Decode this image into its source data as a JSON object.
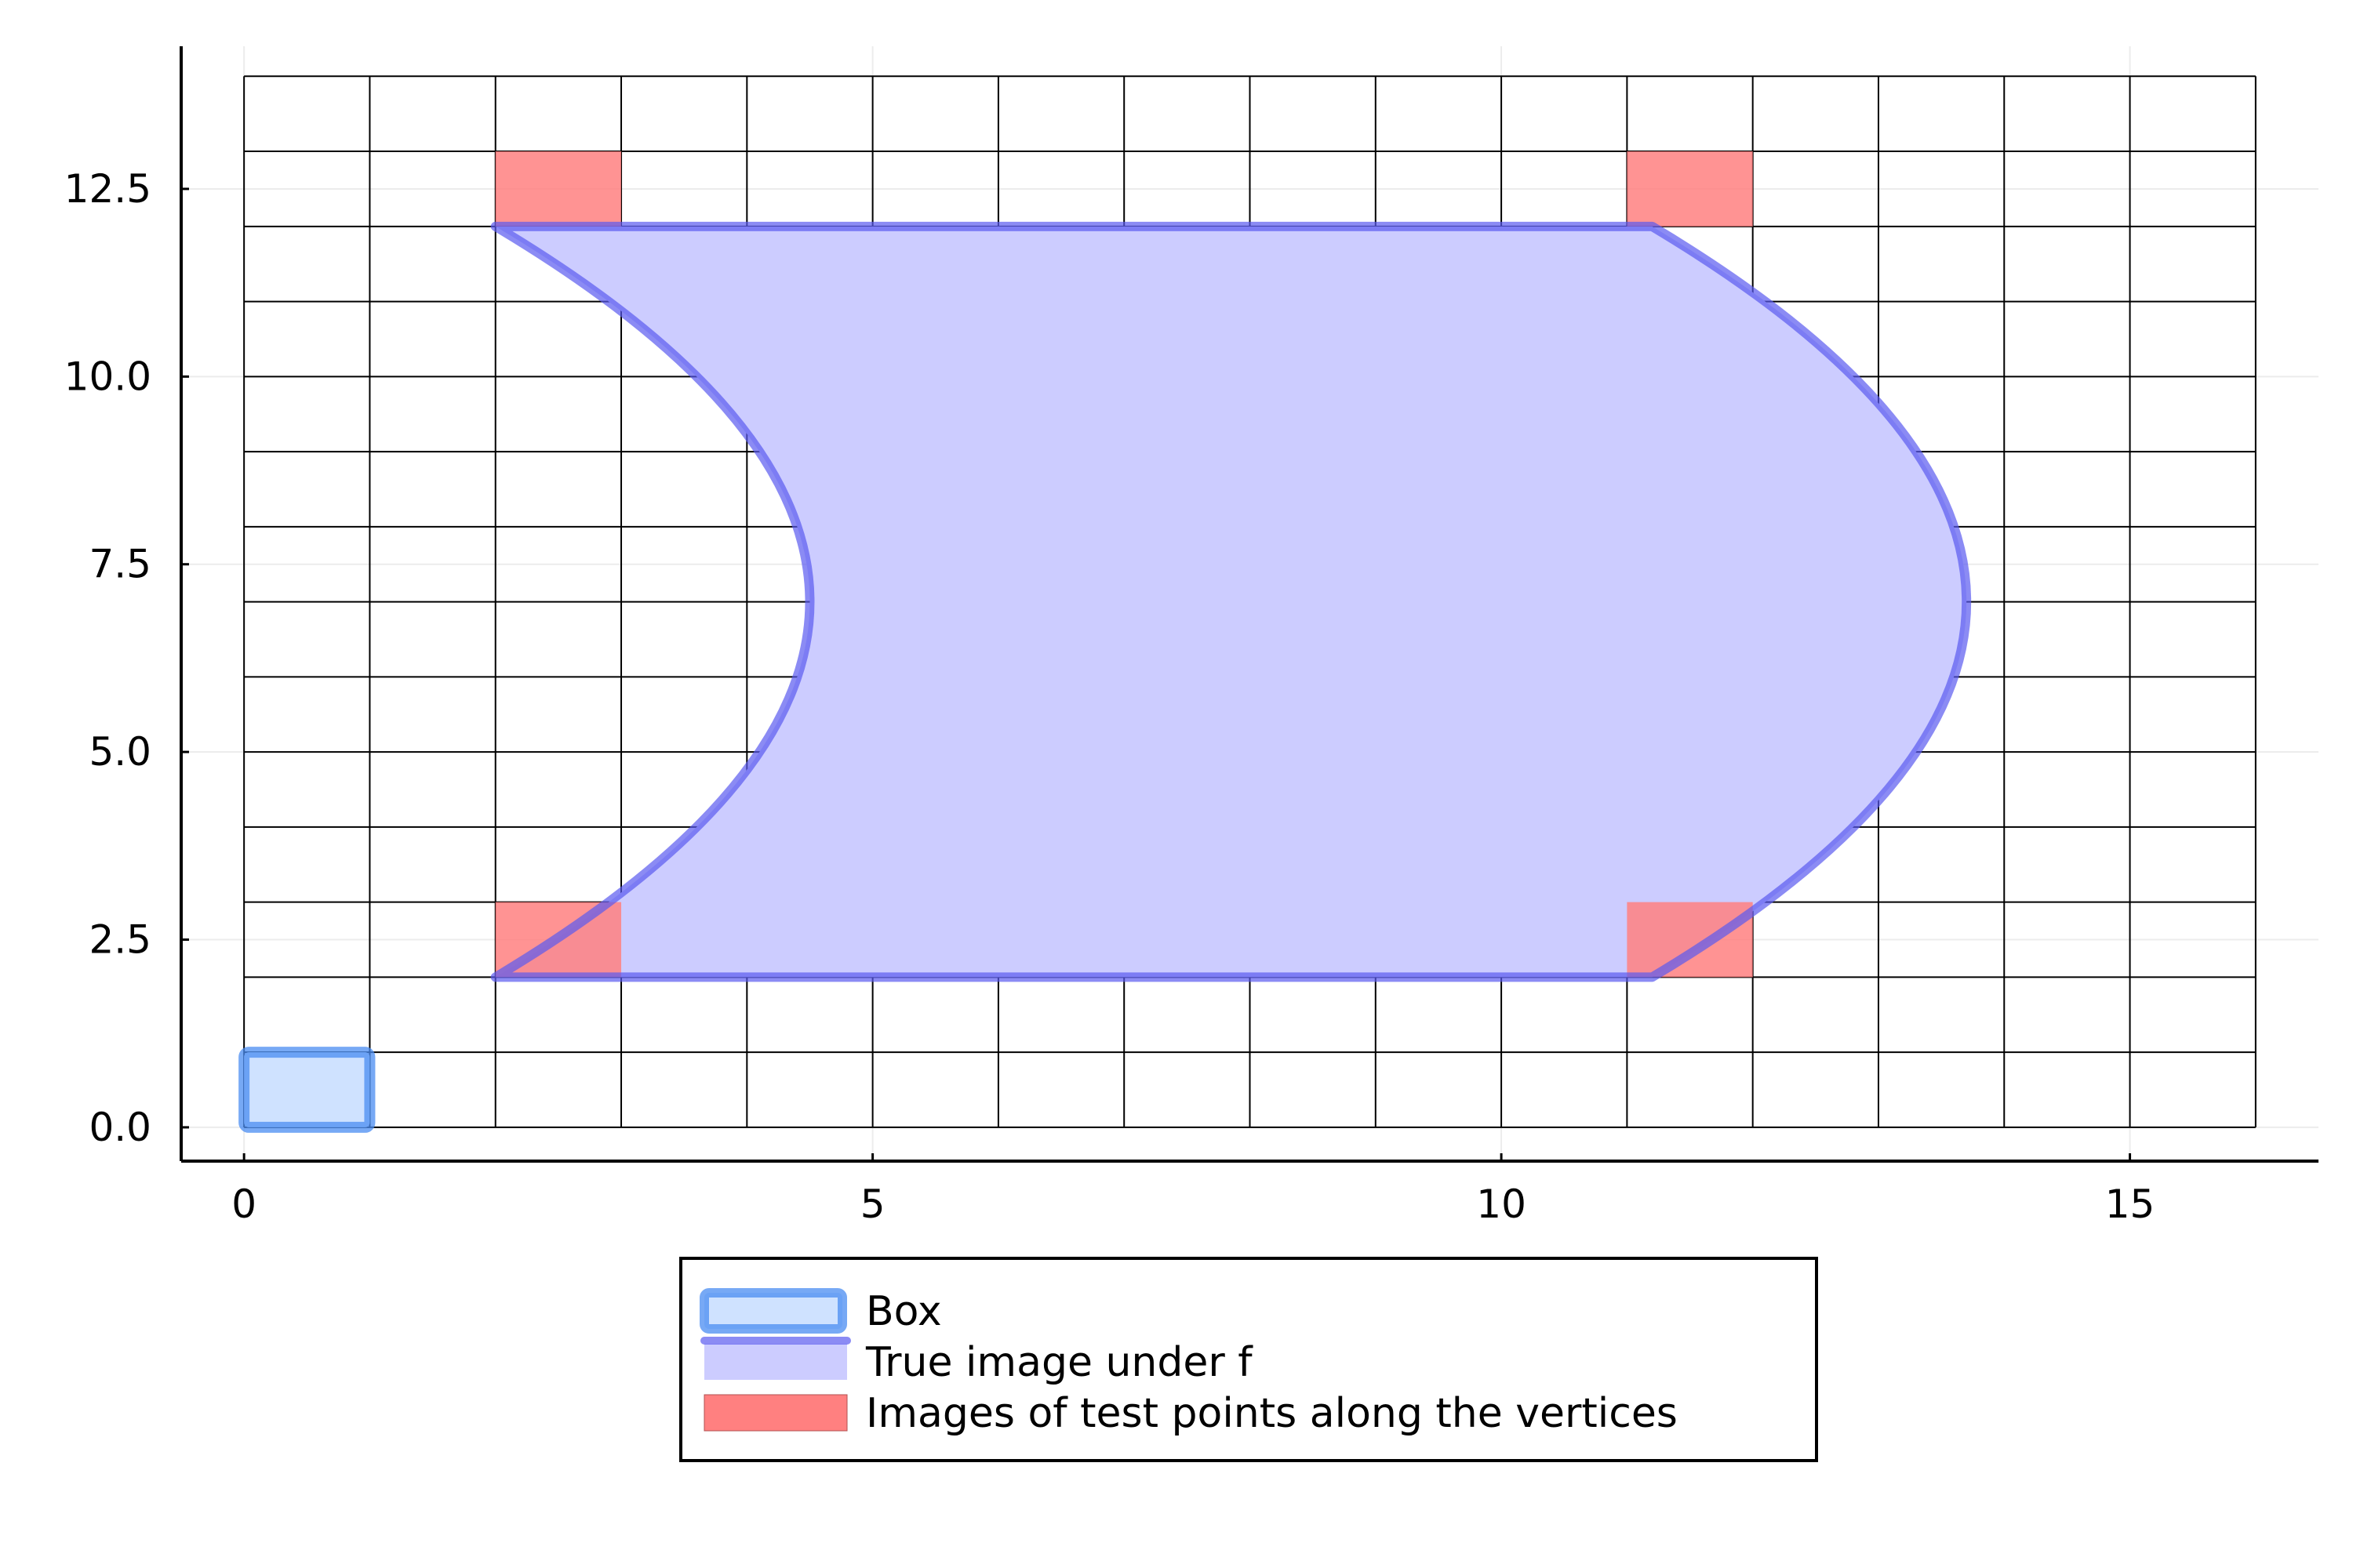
{
  "chart_data": {
    "type": "area",
    "title": "",
    "xlabel": "",
    "ylabel": "",
    "xlim": [
      -0.5,
      16.5
    ],
    "ylim": [
      -0.45,
      14.4
    ],
    "x_ticks": [
      0,
      5,
      10,
      15
    ],
    "x_tick_labels": [
      "0",
      "5",
      "10",
      "15"
    ],
    "y_ticks": [
      0,
      2.5,
      5,
      7.5,
      10,
      12.5
    ],
    "y_tick_labels": [
      "0.0",
      "2.5",
      "5.0",
      "7.5",
      "10.0",
      "12.5"
    ],
    "grid": true,
    "legend_position": "bottom-center",
    "cell_grid": {
      "x_range": [
        0,
        16
      ],
      "y_range": [
        0,
        14
      ],
      "step": 1
    },
    "series": [
      {
        "name": "Box",
        "kind": "rect",
        "x": [
          0,
          1
        ],
        "y": [
          0,
          1
        ],
        "fill_color": "#cfe2ff",
        "stroke_color": "#4a8cf2"
      },
      {
        "name": "True image under f",
        "kind": "region",
        "left_edge": {
          "top": [
            2,
            12
          ],
          "vertex": [
            4.5,
            7
          ],
          "bottom": [
            2,
            2
          ]
        },
        "right_edge": {
          "bottom": [
            11.2,
            2
          ],
          "vertex": [
            13.7,
            7
          ],
          "top": [
            11.2,
            12
          ]
        },
        "fill_color": "#ccccff",
        "stroke_color": "#7a7af5"
      },
      {
        "name": "Images of test points along the vertices",
        "kind": "cells",
        "cells": [
          [
            2,
            12
          ],
          [
            11,
            12
          ],
          [
            2,
            2
          ],
          [
            11,
            2
          ]
        ],
        "fill_color": "#ff8080"
      }
    ]
  }
}
